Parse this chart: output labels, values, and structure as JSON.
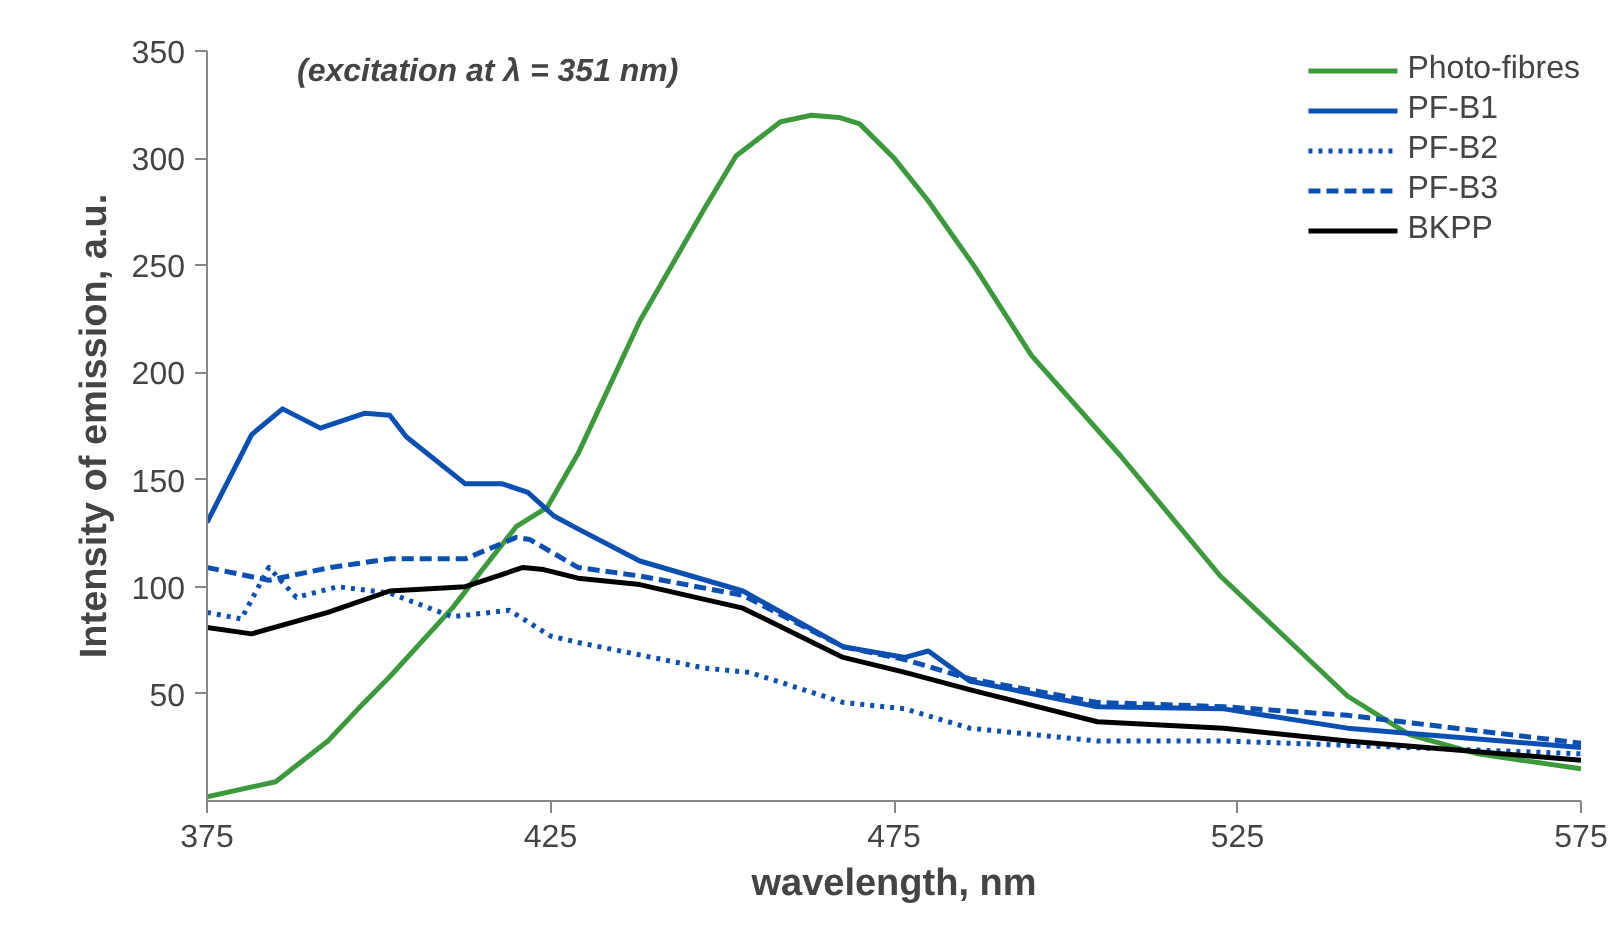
{
  "chart_data": {
    "type": "line",
    "xlabel": "wavelength, nm",
    "ylabel": "Intensity of emission, a.u.",
    "annotations": [
      "(excitation at λ = 351 nm)"
    ],
    "xlim": [
      375,
      575
    ],
    "xticks": [
      375,
      425,
      475,
      525,
      575
    ],
    "ylim": [
      0,
      350
    ],
    "yticks": [
      50,
      100,
      150,
      200,
      250,
      300,
      350
    ],
    "grid": false,
    "legend": "top right",
    "series": [
      {
        "name": "Photo-fibres",
        "color": "#3c9a3c",
        "line_style": "solid",
        "x": [
          375,
          385,
          392.6,
          397,
          401.6,
          410.7,
          420,
          424.5,
          429,
          438,
          447.5,
          452,
          458.5,
          463,
          467,
          470,
          475,
          480,
          486.8,
          495,
          508,
          522.5,
          541,
          550,
          560,
          575
        ],
        "values": [
          2,
          9,
          28,
          43,
          58,
          90,
          128,
          137,
          162,
          224,
          277,
          301,
          317,
          320,
          319,
          316,
          300,
          280,
          249,
          208,
          161,
          105,
          49,
          31,
          22,
          15
        ]
      },
      {
        "name": "PF-B1",
        "color": "#0b4fb3",
        "line_style": "solid",
        "x": [
          375,
          381.5,
          386,
          391.5,
          398,
          401.6,
          404,
          412.6,
          418,
          421.7,
          425.5,
          429,
          438,
          453,
          467.6,
          476.6,
          480,
          486,
          504.6,
          523,
          541,
          575
        ],
        "values": [
          130,
          171,
          183,
          174,
          181,
          180,
          170,
          148,
          148,
          144,
          133,
          127,
          112,
          98,
          72,
          67,
          70,
          56,
          44,
          43,
          34,
          25
        ]
      },
      {
        "name": "PF-B2",
        "color": "#0b4fb3",
        "line_style": "dotted",
        "x": [
          375,
          380,
          384,
          388,
          394,
          401.6,
          410.7,
          419,
          425,
          429,
          447.5,
          454,
          467.6,
          476.6,
          486,
          504.6,
          523,
          541,
          575
        ],
        "values": [
          88,
          85,
          109,
          95,
          100,
          97,
          86,
          89,
          77,
          74,
          62,
          60,
          46,
          43,
          34,
          28,
          28,
          26,
          22
        ]
      },
      {
        "name": "PF-B3",
        "color": "#0b4fb3",
        "line_style": "dashed",
        "x": [
          375,
          384,
          393,
          401.6,
          412.6,
          420,
          422,
          429,
          438,
          453,
          467.6,
          476.6,
          486,
          504.6,
          523,
          541,
          575
        ],
        "values": [
          109,
          103,
          109,
          113,
          113,
          123,
          122,
          109,
          105,
          96,
          72,
          66,
          57,
          46,
          44,
          40,
          27
        ]
      },
      {
        "name": "BKPP",
        "color": "#000000",
        "line_style": "solid",
        "x": [
          375,
          381.5,
          392.6,
          401.6,
          412.6,
          421,
          424,
          429,
          438,
          453,
          467.6,
          476.6,
          486,
          504.6,
          523,
          541,
          575
        ],
        "values": [
          81,
          78,
          88,
          98,
          100,
          109,
          108,
          104,
          101,
          90,
          67,
          60,
          52,
          37,
          34,
          28,
          19
        ]
      }
    ]
  }
}
